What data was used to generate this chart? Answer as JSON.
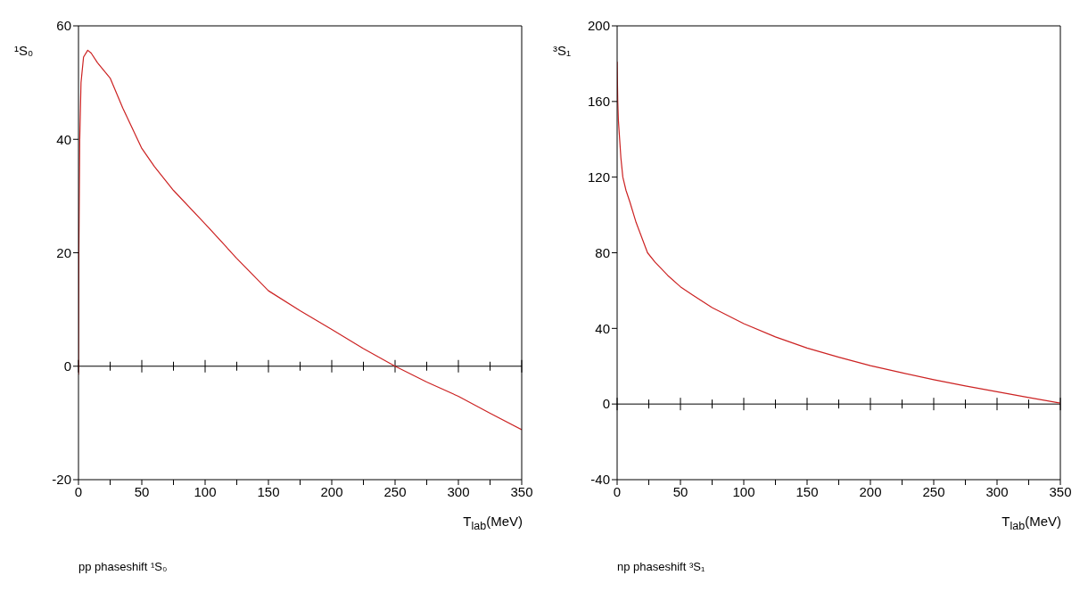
{
  "chart_data": [
    {
      "type": "line",
      "title": "pp phaseshift ¹S₀",
      "ylabel": "¹S₀",
      "xlabel": "T$_{lab}$(MeV)",
      "xlim": [
        0,
        350
      ],
      "ylim": [
        -20,
        60
      ],
      "xticks": [
        0,
        {
          "value": 25,
          "label": null
        },
        50,
        {
          "value": 75,
          "label": null
        },
        100,
        {
          "value": 125,
          "label": null
        },
        150,
        {
          "value": 175,
          "label": null
        },
        200,
        {
          "value": 225,
          "label": null
        },
        250,
        {
          "value": 275,
          "label": null
        },
        300,
        {
          "value": 325,
          "label": null
        },
        350
      ],
      "yticks": [
        -20,
        0,
        20,
        40,
        60
      ],
      "grid": false,
      "marker": "none",
      "line_style": "solid",
      "ref_lines": [
        {
          "axis": "y",
          "value": 0,
          "color": "#000000"
        }
      ],
      "series": [
        {
          "color": "#cc2222",
          "x": [
            0,
            0.3,
            1,
            2,
            4,
            7.3,
            10,
            15,
            25,
            35,
            50,
            60,
            75,
            100,
            125,
            150,
            175,
            200,
            225,
            250,
            275,
            300,
            325,
            350
          ],
          "values": [
            -1.5,
            20,
            40,
            50,
            54.5,
            55.7,
            55.2,
            53.5,
            50.8,
            45.5,
            38.4,
            35.2,
            31,
            25.1,
            19,
            13.3,
            9.8,
            6.5,
            3.1,
            0,
            -2.8,
            -5.3,
            -8.3,
            -11.2
          ]
        }
      ]
    },
    {
      "type": "line",
      "title": "np phaseshift ³S₁",
      "ylabel": "³S₁",
      "xlabel": "T$_{lab}$(MeV)",
      "xlim": [
        0,
        350
      ],
      "ylim": [
        -40,
        200
      ],
      "xticks": [
        0,
        {
          "value": 25,
          "label": null
        },
        50,
        {
          "value": 75,
          "label": null
        },
        100,
        {
          "value": 125,
          "label": null
        },
        150,
        {
          "value": 175,
          "label": null
        },
        200,
        {
          "value": 225,
          "label": null
        },
        250,
        {
          "value": 275,
          "label": null
        },
        300,
        {
          "value": 325,
          "label": null
        },
        350
      ],
      "yticks": [
        -40,
        0,
        40,
        80,
        120,
        160,
        200
      ],
      "grid": false,
      "marker": "none",
      "line_style": "solid",
      "ref_lines": [
        {
          "axis": "y",
          "value": 0,
          "color": "#000000"
        }
      ],
      "series": [
        {
          "color": "#cc2222",
          "x": [
            0,
            0.5,
            1,
            2,
            3,
            4.5,
            7,
            10,
            15,
            24,
            30,
            40,
            50,
            60,
            75,
            100,
            125,
            150,
            175,
            200,
            225,
            250,
            275,
            300,
            325,
            350
          ],
          "values": [
            181,
            160,
            150,
            140,
            130,
            120,
            113,
            107,
            96,
            80,
            75,
            68,
            62,
            57.5,
            51,
            42.5,
            35.5,
            29.6,
            24.8,
            20.3,
            16.5,
            12.9,
            9.6,
            6.5,
            3.4,
            0.5
          ]
        }
      ]
    }
  ]
}
